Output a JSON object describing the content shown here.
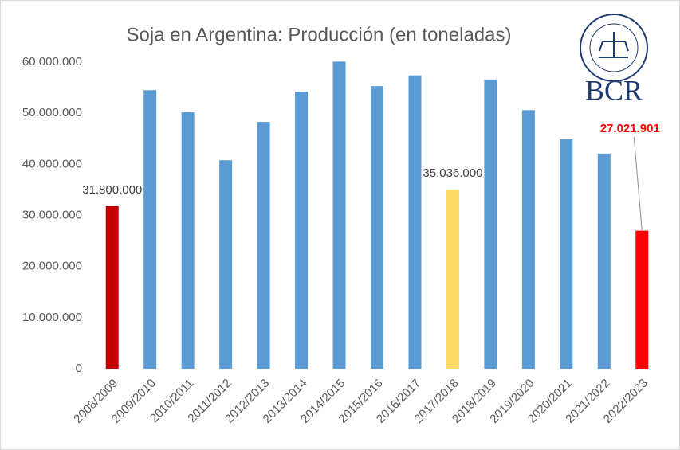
{
  "chart_data": {
    "type": "bar",
    "title": "Soja en Argentina: Producción (en toneladas)",
    "categories": [
      "2008/2009",
      "2009/2010",
      "2010/2011",
      "2011/2012",
      "2012/2013",
      "2013/2014",
      "2014/2015",
      "2015/2016",
      "2016/2017",
      "2017/2018",
      "2018/2019",
      "2019/2020",
      "2020/2021",
      "2021/2022",
      "2022/2023"
    ],
    "values": [
      31800000,
      54500000,
      50200000,
      40800000,
      48300000,
      54200000,
      60100000,
      55300000,
      57400000,
      35036000,
      56600000,
      50600000,
      44900000,
      42100000,
      27021901
    ],
    "value_labels": [
      "31.800.000",
      null,
      null,
      null,
      null,
      null,
      null,
      null,
      null,
      "35.036.000",
      null,
      null,
      null,
      null,
      "27.021.901"
    ],
    "colors": [
      "#c00000",
      "#5b9bd5",
      "#5b9bd5",
      "#5b9bd5",
      "#5b9bd5",
      "#5b9bd5",
      "#5b9bd5",
      "#5b9bd5",
      "#5b9bd5",
      "#ffd966",
      "#5b9bd5",
      "#5b9bd5",
      "#5b9bd5",
      "#5b9bd5",
      "#ff0000"
    ],
    "label_colors": [
      "#404040",
      null,
      null,
      null,
      null,
      null,
      null,
      null,
      null,
      "#404040",
      null,
      null,
      null,
      null,
      "#ff0000"
    ],
    "ylim": [
      0,
      60000000
    ],
    "yticks": [
      0,
      {
        "value": 10000000,
        "label": "10.000.000"
      },
      {
        "value": 20000000,
        "label": "20.000.000"
      },
      {
        "value": 30000000,
        "label": "30.000.000"
      },
      {
        "value": 40000000,
        "label": "40.000.000"
      },
      {
        "value": 50000000,
        "label": "50.000.000"
      },
      {
        "value": 60000000,
        "label": "60.000.000"
      }
    ],
    "grid": false
  },
  "logo": {
    "text": "BCR"
  }
}
